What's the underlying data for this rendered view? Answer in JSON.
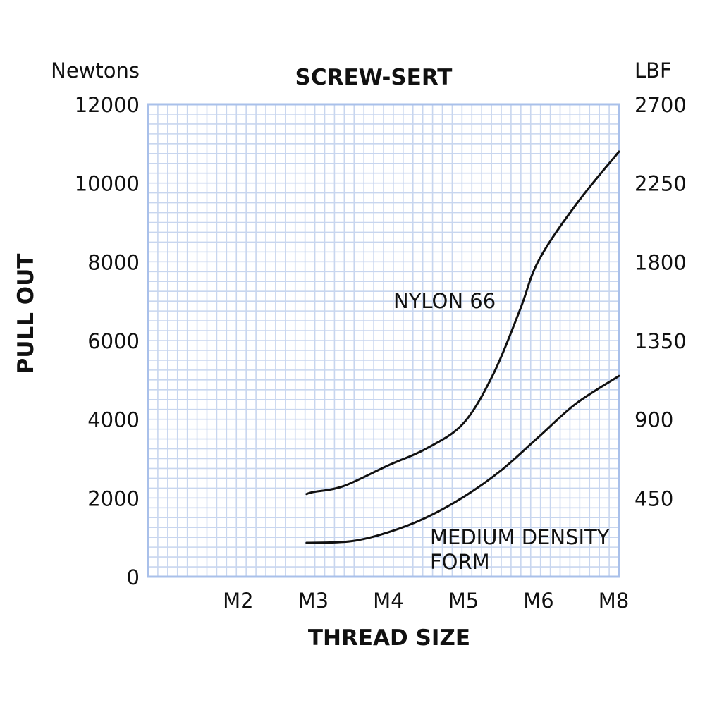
{
  "chart_data": {
    "type": "line",
    "title": "SCREW-SERT",
    "xlabel": "THREAD SIZE",
    "ylabel": "PULL OUT",
    "left_unit": "Newtons",
    "right_unit": "LBF",
    "categories": [
      "M2",
      "M3",
      "M4",
      "M5",
      "M6",
      "M8"
    ],
    "xlim": [
      -0.2,
      6.07
    ],
    "ylim": [
      0,
      12000
    ],
    "y_ticks": [
      0,
      2000,
      4000,
      6000,
      8000,
      10000,
      12000
    ],
    "y_tick_labels": [
      "0",
      "2000",
      "4000",
      "6000",
      "8000",
      "10000",
      "12000"
    ],
    "right_ticks": [
      2000,
      4000,
      6000,
      8000,
      10000,
      12000
    ],
    "right_tick_labels": [
      "450",
      "900",
      "1350",
      "1800",
      "2250",
      "2700"
    ],
    "grid": true,
    "colors": {
      "grid": "#c8d6ef",
      "border": "#a9c0ea",
      "line": "#111111"
    },
    "series": [
      {
        "name": "NYLON 66",
        "label_lines": [
          "NYLON 66"
        ],
        "x": [
          1.91,
          2,
          2.4,
          3,
          3.5,
          4,
          4.4,
          4.75,
          5,
          5.5,
          6.07
        ],
        "values": [
          2100,
          2150,
          2300,
          2830,
          3250,
          3900,
          5160,
          6770,
          8030,
          9460,
          10800
        ]
      },
      {
        "name": "MEDIUM DENSITY FORM",
        "label_lines": [
          "MEDIUM DENSITY",
          "FORM"
        ],
        "x": [
          1.91,
          2.5,
          3,
          3.5,
          4,
          4.5,
          5,
          5.5,
          6.07
        ],
        "values": [
          860,
          900,
          1130,
          1500,
          2025,
          2700,
          3550,
          4400,
          5100
        ]
      }
    ]
  }
}
